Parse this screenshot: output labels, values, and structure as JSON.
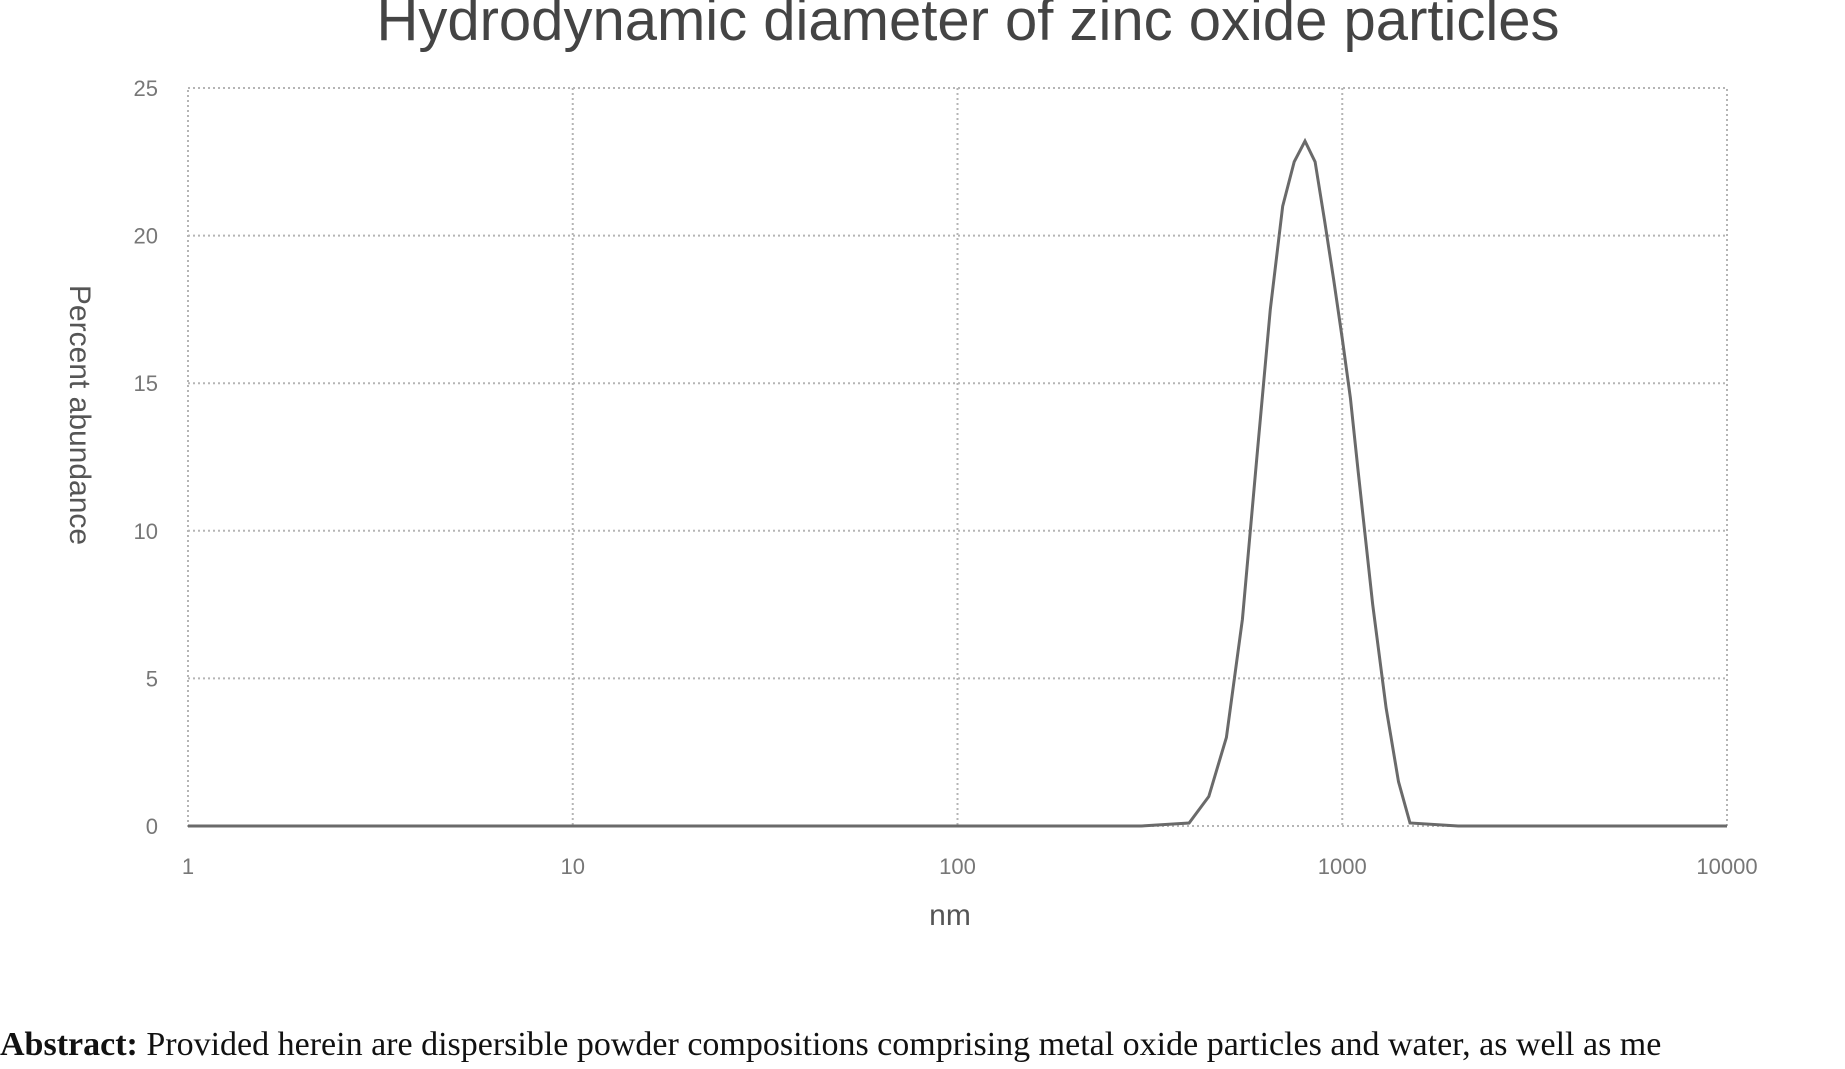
{
  "chart_data": {
    "type": "line",
    "title": "Hydrodynamic diameter of zinc oxide particles",
    "xlabel": "nm",
    "ylabel": "Percent abundance",
    "xscale": "log",
    "xlim": [
      1,
      10000
    ],
    "ylim": [
      0,
      25
    ],
    "x_ticks": [
      "1",
      "10",
      "100",
      "1000",
      "10000"
    ],
    "y_ticks": [
      "0",
      "5",
      "10",
      "15",
      "20",
      "25"
    ],
    "grid": true,
    "series": [
      {
        "x": [
          1,
          300,
          400,
          450,
          500,
          550,
          600,
          650,
          700,
          750,
          800,
          850,
          900,
          950,
          1000,
          1050,
          1100,
          1200,
          1300,
          1400,
          1500,
          2000,
          5000,
          10000
        ],
        "y": [
          0,
          0,
          0.1,
          1.0,
          3.0,
          7.0,
          12.5,
          17.5,
          21.0,
          22.5,
          23.2,
          22.5,
          20.5,
          18.5,
          16.5,
          14.5,
          12.0,
          7.5,
          4.0,
          1.5,
          0.1,
          0,
          0,
          0
        ]
      }
    ]
  },
  "abstract": {
    "label": "Abstract:",
    "text": "Provided herein are dispersible powder compositions comprising metal oxide particles and water, as well as me"
  }
}
